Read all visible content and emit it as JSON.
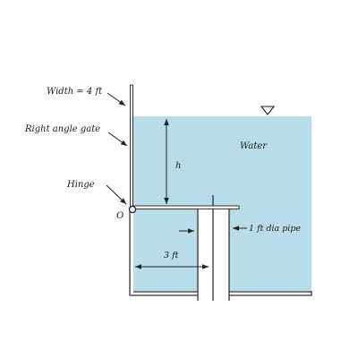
{
  "colors": {
    "water": "#b8dce8",
    "background": "#ffffff",
    "ink": "#222222"
  },
  "labels": {
    "width": "Width = 4 ft",
    "gate": "Right angle gate",
    "hinge": "Hinge",
    "origin": "O",
    "h": "h",
    "water": "Water",
    "pipe": "1 ft dia pipe",
    "dim_3ft": "3 ft"
  },
  "icons": {
    "free_surface": "inverted-triangle-icon"
  }
}
